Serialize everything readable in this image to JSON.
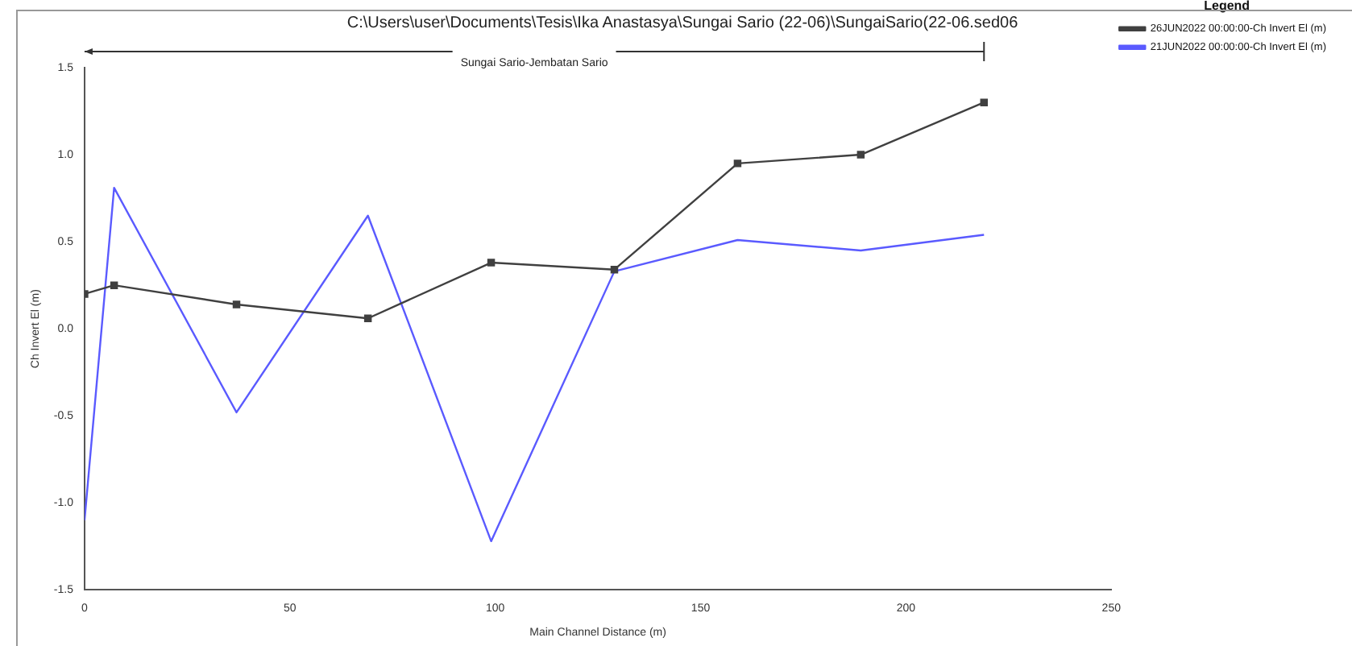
{
  "chart_data": {
    "type": "line",
    "title": "C:\\Users\\user\\Documents\\Tesis\\Ika Anastasya\\Sungai Sario (22-06)\\SungaiSario(22-06.sed06",
    "xlabel": "Main Channel Distance (m)",
    "ylabel": "Ch Invert El (m)",
    "annotations": [
      "Sungai Sario-Jembatan Sario"
    ],
    "legend_title": "Legend",
    "legend": "top right",
    "grid": false,
    "line_style": "solid",
    "xlim": [
      0,
      250
    ],
    "xticks": [
      0,
      50,
      100,
      150,
      200,
      250
    ],
    "ylim": [
      -1.5,
      1.5
    ],
    "yticks": [
      {
        "value": -1.5,
        "label": "-1.5"
      },
      {
        "value": -1,
        "label": "-1.0"
      },
      {
        "value": -0.5,
        "label": "-0.5"
      },
      {
        "value": 0,
        "label": "0.0"
      },
      {
        "value": 0.5,
        "label": "0.5"
      },
      {
        "value": 1,
        "label": "1.0"
      },
      {
        "value": 1.5,
        "label": "1.5"
      }
    ],
    "x": [
      0,
      7.2,
      37,
      69,
      99,
      129,
      159,
      189,
      219
    ],
    "series": [
      {
        "name": "26JUN2022 00:00:00-Ch Invert El (m)",
        "color": "#404040",
        "marker": "square",
        "values": [
          0.2,
          0.25,
          0.14,
          0.06,
          0.38,
          0.34,
          0.95,
          1.0,
          1.3
        ]
      },
      {
        "name": "21JUN2022 00:00:00-Ch Invert El (m)",
        "color": "#5a5aff",
        "marker": "none",
        "values": [
          -1.1,
          0.81,
          -0.48,
          0.65,
          -1.22,
          0.33,
          0.51,
          0.45,
          0.54
        ]
      }
    ]
  }
}
